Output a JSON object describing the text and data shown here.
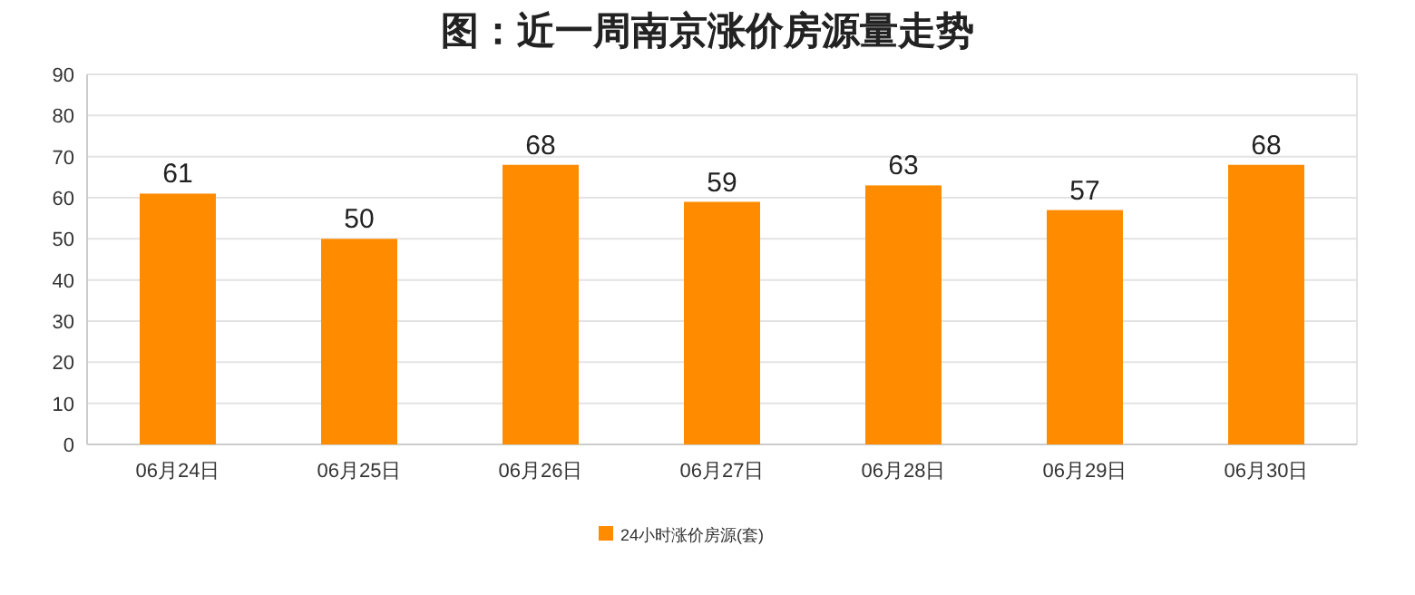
{
  "chart_data": {
    "type": "bar",
    "title": "图：近一周南京涨价房源量走势",
    "categories": [
      "06月24日",
      "06月25日",
      "06月26日",
      "06月27日",
      "06月28日",
      "06月29日",
      "06月30日"
    ],
    "series": [
      {
        "name": "24小时涨价房源(套)",
        "color": "#ff8c00",
        "values": [
          61,
          50,
          68,
          59,
          63,
          57,
          68
        ]
      }
    ],
    "ylim": [
      0,
      90
    ],
    "yticks": [
      0,
      10,
      20,
      30,
      40,
      50,
      60,
      70,
      80,
      90
    ],
    "grid": "y",
    "data_labels": true,
    "legend": "bottom"
  }
}
